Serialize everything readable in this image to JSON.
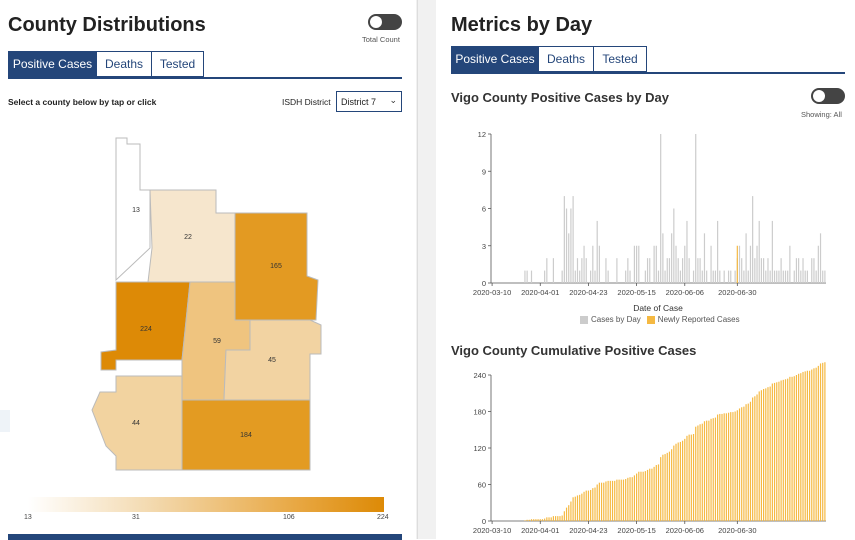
{
  "left": {
    "title": "County Distributions",
    "toggle_label": "Total Count",
    "tabs": [
      "Positive Cases",
      "Deaths",
      "Tested"
    ],
    "active_tab": 0,
    "instruction": "Select a county below by tap or click",
    "district_label": "ISDH District",
    "district_value": "District 7",
    "counties": [
      {
        "value": "13",
        "fill": "#ffffff"
      },
      {
        "value": "22",
        "fill": "#f6e6cd"
      },
      {
        "value": "165",
        "fill": "#e39a22"
      },
      {
        "value": "224",
        "fill": "#dd8a06"
      },
      {
        "value": "59",
        "fill": "#efc47f"
      },
      {
        "value": "45",
        "fill": "#f2d3a2"
      },
      {
        "value": "44",
        "fill": "#f2d3a0"
      },
      {
        "value": "184",
        "fill": "#e39b22"
      }
    ],
    "scale_ticks": [
      "13",
      "31",
      "106",
      "224"
    ]
  },
  "right": {
    "title": "Metrics by Day",
    "tabs": [
      "Positive Cases",
      "Deaths",
      "Tested"
    ],
    "active_tab": 0,
    "chart1_title": "Vigo County Positive Cases by Day",
    "toggle_label": "Showing: All",
    "chart2_title": "Vigo County Cumulative Positive Cases",
    "legend": [
      {
        "label": "Cases by Day",
        "color": "#cccccc"
      },
      {
        "label": "Newly Reported Cases",
        "color": "#f5b942"
      }
    ]
  },
  "chart_data": [
    {
      "type": "bar",
      "title": "Vigo County Positive Cases by Day",
      "xlabel": "Date of Case",
      "ylabel": "",
      "ylim": [
        0,
        12
      ],
      "y_ticks": [
        0,
        3,
        6,
        9,
        12
      ],
      "x_tick_labels": [
        "2020-03-10",
        "2020-04-01",
        "2020-04-23",
        "2020-05-15",
        "2020-06-06",
        "2020-06-30"
      ],
      "x_ticks_at_day": [
        0,
        22,
        44,
        66,
        88,
        112
      ],
      "series": [
        {
          "name": "Cases by Day",
          "color": "#cccccc",
          "values": [
            0,
            0,
            0,
            0,
            0,
            0,
            0,
            0,
            0,
            0,
            0,
            0,
            0,
            0,
            0,
            1,
            1,
            0,
            1,
            0,
            0,
            0,
            0,
            0,
            1,
            2,
            0,
            0,
            2,
            0,
            0,
            0,
            1,
            7,
            6,
            4,
            6,
            7,
            1,
            2,
            1,
            2,
            3,
            2,
            0,
            1,
            3,
            1,
            5,
            3,
            0,
            0,
            2,
            1,
            0,
            0,
            0,
            2,
            0,
            0,
            0,
            1,
            2,
            1,
            0,
            3,
            3,
            3,
            0,
            0,
            1,
            2,
            2,
            0,
            3,
            3,
            1,
            12,
            4,
            1,
            2,
            2,
            4,
            6,
            3,
            2,
            1,
            2,
            3,
            5,
            2,
            0,
            1,
            12,
            2,
            2,
            1,
            4,
            1,
            0,
            3,
            1,
            1,
            5,
            1,
            0,
            1,
            0,
            1,
            1,
            0,
            1,
            2,
            3,
            2,
            1,
            4,
            1,
            3,
            7,
            2,
            3,
            5,
            2,
            2,
            1,
            2,
            1,
            5,
            1,
            1,
            1,
            2,
            1,
            1,
            1,
            3,
            0,
            1,
            2,
            2,
            1,
            2,
            1,
            1,
            0,
            2,
            2,
            1,
            3,
            4,
            1,
            1
          ]
        }
      ],
      "newly_reported": [
        {
          "day_index": 112,
          "value": 3
        }
      ]
    },
    {
      "type": "bar",
      "title": "Vigo County Cumulative Positive Cases",
      "ylim": [
        0,
        240
      ],
      "y_ticks": [
        0,
        60,
        120,
        180,
        240
      ],
      "x_tick_labels": [
        "2020-03-10",
        "2020-04-01",
        "2020-04-23",
        "2020-05-15",
        "2020-06-06",
        "2020-06-30"
      ],
      "x_ticks_at_day": [
        0,
        22,
        44,
        66,
        88,
        112
      ],
      "series": [
        {
          "name": "Cumulative",
          "color": "#f5b942"
        }
      ]
    }
  ]
}
